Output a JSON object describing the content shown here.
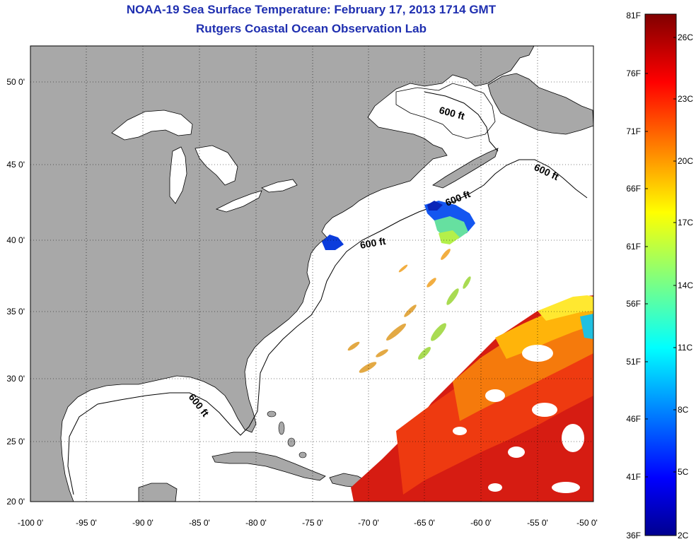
{
  "header": {
    "title": "NOAA-19 Sea Surface Temperature:  February 17, 2013 1714 GMT",
    "subtitle": "Rutgers Coastal Ocean Observation Lab"
  },
  "axes": {
    "x_ticks": [
      "-100 0'",
      "-95 0'",
      "-90 0'",
      "-85 0'",
      "-80 0'",
      "-75 0'",
      "-70 0'",
      "-65 0'",
      "-60 0'",
      "-55 0'",
      "-50 0'"
    ],
    "y_ticks": [
      "50 0'",
      "45 0'",
      "40 0'",
      "35 0'",
      "30 0'",
      "25 0'",
      "20 0'"
    ],
    "lon_range": [
      -100,
      -50
    ],
    "lat_range": [
      20,
      52
    ]
  },
  "contour_labels": [
    "600 ft",
    "600 ft",
    "600 ft",
    "600 ft",
    "600 ft"
  ],
  "colorbar": {
    "fahrenheit": [
      "81F",
      "76F",
      "71F",
      "66F",
      "61F",
      "56F",
      "51F",
      "46F",
      "41F",
      "36F"
    ],
    "celsius": [
      "26C",
      "23C",
      "20C",
      "17C",
      "14C",
      "11C",
      "8C",
      "5C",
      "2C"
    ],
    "colormap": "jet"
  },
  "colors": {
    "land": "#a8a8a8",
    "ocean": "#ffffff",
    "title": "#1f2fb0",
    "grid": "#000000"
  }
}
